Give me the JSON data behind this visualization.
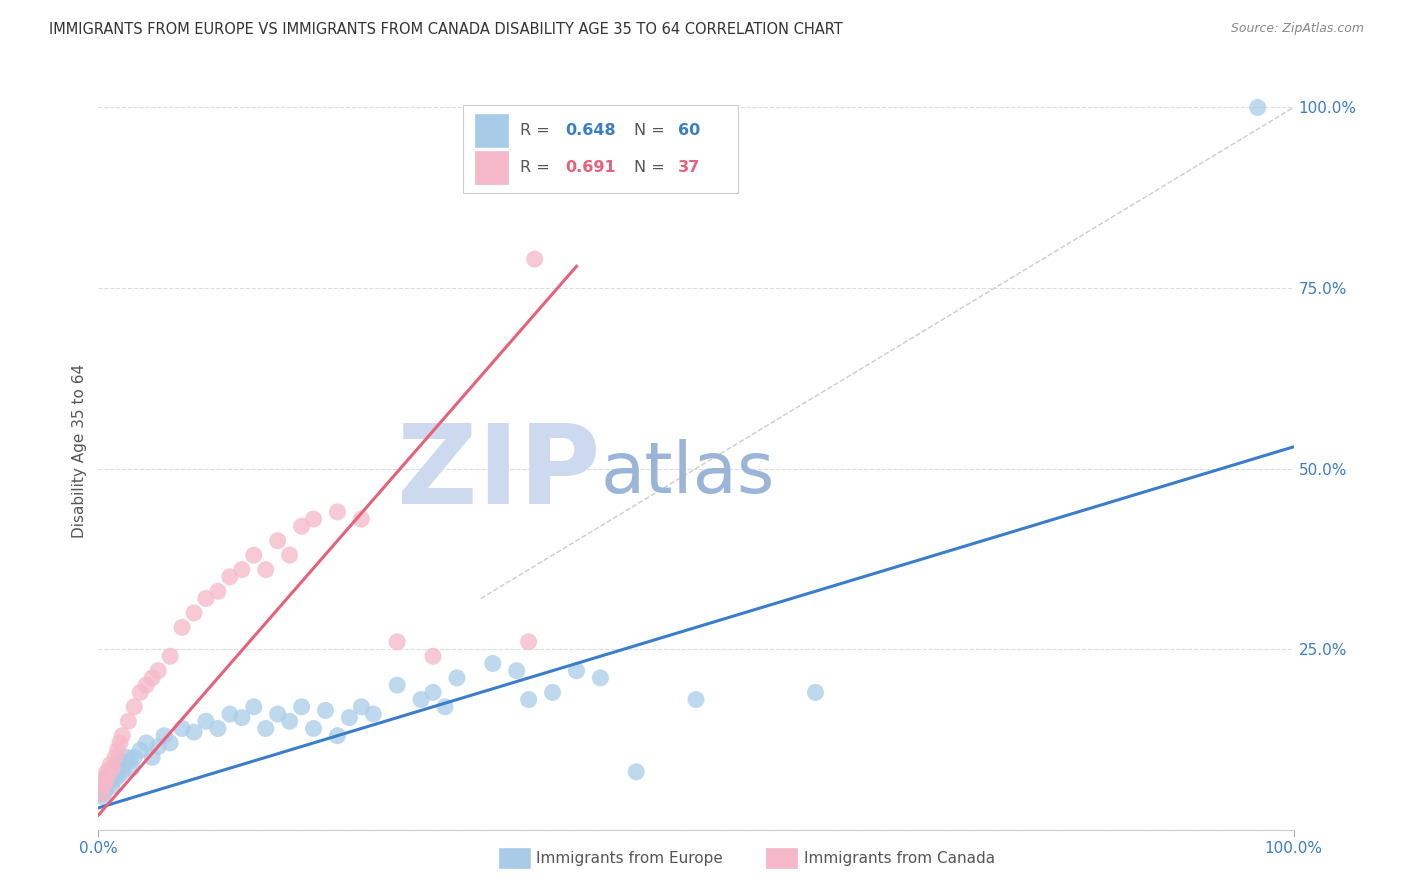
{
  "title": "IMMIGRANTS FROM EUROPE VS IMMIGRANTS FROM CANADA DISABILITY AGE 35 TO 64 CORRELATION CHART",
  "source": "Source: ZipAtlas.com",
  "ylabel": "Disability Age 35 to 64",
  "legend_blue_label": "Immigrants from Europe",
  "legend_pink_label": "Immigrants from Canada",
  "blue_r": "0.648",
  "blue_n": "60",
  "pink_r": "0.691",
  "pink_n": "37",
  "blue_scatter_color": "#a8cce8",
  "pink_scatter_color": "#f5b8c8",
  "blue_line_color": "#3a7dc9",
  "pink_line_color": "#e8607a",
  "diag_line_color": "#cccccc",
  "watermark_zip_color": "#ccd9ee",
  "watermark_atlas_color": "#9ab5d8",
  "background_color": "#ffffff",
  "grid_color": "#dddddd",
  "title_color": "#333333",
  "ylabel_color": "#555555",
  "right_tick_color": "#3a7dc9",
  "bottom_tick_color": "#3a7dc9",
  "legend_text_color": "#555555",
  "source_color": "#888888",
  "blue_scatter_x": [
    0.3,
    0.4,
    0.5,
    0.6,
    0.7,
    0.8,
    0.9,
    1.0,
    1.1,
    1.2,
    1.3,
    1.4,
    1.5,
    1.6,
    1.7,
    1.8,
    2.0,
    2.2,
    2.4,
    2.6,
    2.8,
    3.0,
    3.5,
    4.0,
    4.5,
    5.0,
    5.5,
    6.0,
    7.0,
    8.0,
    9.0,
    10.0,
    11.0,
    12.0,
    13.0,
    14.0,
    15.0,
    16.0,
    17.0,
    18.0,
    19.0,
    20.0,
    21.0,
    22.0,
    23.0,
    25.0,
    27.0,
    28.0,
    29.0,
    30.0,
    33.0,
    35.0,
    36.0,
    38.0,
    40.0,
    42.0,
    45.0,
    50.0,
    60.0,
    97.0
  ],
  "blue_scatter_y": [
    5.0,
    4.5,
    6.0,
    5.5,
    7.0,
    6.5,
    8.0,
    7.5,
    6.0,
    7.0,
    8.5,
    7.0,
    9.0,
    8.0,
    7.5,
    9.5,
    8.0,
    9.0,
    10.0,
    9.5,
    8.5,
    10.0,
    11.0,
    12.0,
    10.0,
    11.5,
    13.0,
    12.0,
    14.0,
    13.5,
    15.0,
    14.0,
    16.0,
    15.5,
    17.0,
    14.0,
    16.0,
    15.0,
    17.0,
    14.0,
    16.5,
    13.0,
    15.5,
    17.0,
    16.0,
    20.0,
    18.0,
    19.0,
    17.0,
    21.0,
    23.0,
    22.0,
    18.0,
    19.0,
    22.0,
    21.0,
    8.0,
    18.0,
    19.0,
    100.0
  ],
  "pink_scatter_x": [
    0.3,
    0.4,
    0.5,
    0.6,
    0.7,
    0.8,
    1.0,
    1.2,
    1.4,
    1.6,
    1.8,
    2.0,
    2.5,
    3.0,
    3.5,
    4.0,
    4.5,
    5.0,
    6.0,
    7.0,
    8.0,
    9.0,
    10.0,
    11.0,
    12.0,
    13.0,
    14.0,
    15.0,
    16.0,
    17.0,
    18.0,
    20.0,
    22.0,
    25.0,
    28.0,
    36.0,
    36.5
  ],
  "pink_scatter_y": [
    5.0,
    6.0,
    7.0,
    6.5,
    8.0,
    7.5,
    9.0,
    8.5,
    10.0,
    11.0,
    12.0,
    13.0,
    15.0,
    17.0,
    19.0,
    20.0,
    21.0,
    22.0,
    24.0,
    28.0,
    30.0,
    32.0,
    33.0,
    35.0,
    36.0,
    38.0,
    36.0,
    40.0,
    38.0,
    42.0,
    43.0,
    44.0,
    43.0,
    26.0,
    24.0,
    26.0,
    79.0
  ],
  "blue_line_x": [
    0,
    100
  ],
  "blue_line_y": [
    3.0,
    53.0
  ],
  "pink_line_x": [
    0.0,
    40.0
  ],
  "pink_line_y": [
    2.0,
    78.0
  ],
  "diag_line_x": [
    32,
    100
  ],
  "diag_line_y": [
    32,
    100
  ],
  "xlim": [
    0,
    100
  ],
  "ylim": [
    0,
    105
  ]
}
